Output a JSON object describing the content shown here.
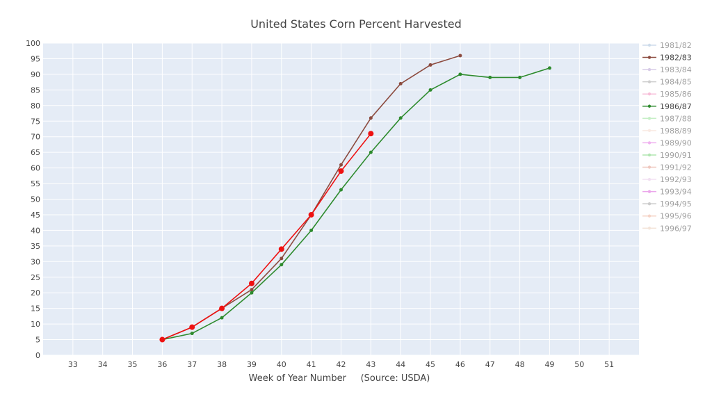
{
  "chart_data": {
    "type": "line",
    "title": "United States Corn Percent Harvested",
    "xlabel": "Week of Year Number     (Source: USDA)",
    "ylabel": "",
    "xlim": [
      32,
      52
    ],
    "ylim": [
      0,
      100
    ],
    "xticks": [
      33,
      34,
      35,
      36,
      37,
      38,
      39,
      40,
      41,
      42,
      43,
      44,
      45,
      46,
      47,
      48,
      49,
      50,
      51
    ],
    "yticks": [
      0,
      5,
      10,
      15,
      20,
      25,
      30,
      35,
      40,
      45,
      50,
      55,
      60,
      65,
      70,
      75,
      80,
      85,
      90,
      95,
      100
    ],
    "grid": true,
    "background_color": "#e5ecf6",
    "legend_position": "right",
    "legend": [
      {
        "name": "1981/82",
        "color": "#9db8d6",
        "faded": true
      },
      {
        "name": "1982/83",
        "color": "#8c4b3f",
        "faded": false
      },
      {
        "name": "1983/84",
        "color": "#b39ad0",
        "faded": true
      },
      {
        "name": "1984/85",
        "color": "#9e9e9e",
        "faded": true
      },
      {
        "name": "1985/86",
        "color": "#f07fb3",
        "faded": true
      },
      {
        "name": "1986/87",
        "color": "#2e8b2e",
        "faded": false
      },
      {
        "name": "1987/88",
        "color": "#8fe08f",
        "faded": true
      },
      {
        "name": "1988/89",
        "color": "#f5d6c8",
        "faded": true
      },
      {
        "name": "1989/90",
        "color": "#e066e0",
        "faded": true
      },
      {
        "name": "1990/91",
        "color": "#66cc66",
        "faded": true
      },
      {
        "name": "1991/92",
        "color": "#e0907f",
        "faded": true
      },
      {
        "name": "1992/93",
        "color": "#e6c3e6",
        "faded": true
      },
      {
        "name": "1993/94",
        "color": "#d94fd9",
        "faded": true
      },
      {
        "name": "1994/95",
        "color": "#999999",
        "faded": true
      },
      {
        "name": "1995/96",
        "color": "#eda98f",
        "faded": true
      },
      {
        "name": "1996/97",
        "color": "#ebcbb5",
        "faded": true
      }
    ],
    "series": [
      {
        "name": "1982/83",
        "color": "#8c4b3f",
        "marker_size": 2.5,
        "x": [
          36,
          37,
          38,
          39,
          40,
          41,
          42,
          43,
          44,
          45,
          46
        ],
        "y": [
          5,
          9,
          15,
          21,
          31,
          45,
          61,
          76,
          87,
          93,
          96
        ]
      },
      {
        "name": "1986/87",
        "color": "#2e8b2e",
        "marker_size": 2.5,
        "x": [
          36,
          37,
          38,
          39,
          40,
          41,
          42,
          43,
          44,
          45,
          46,
          47,
          48,
          49
        ],
        "y": [
          5,
          7,
          12,
          20,
          29,
          40,
          53,
          65,
          76,
          85,
          90,
          89,
          89,
          92
        ]
      },
      {
        "name": "",
        "color": "#ee1111",
        "marker_size": 4,
        "x": [
          36,
          37,
          38,
          39,
          40,
          41,
          42,
          43
        ],
        "y": [
          5,
          9,
          15,
          23,
          34,
          45,
          59,
          71
        ]
      }
    ]
  }
}
